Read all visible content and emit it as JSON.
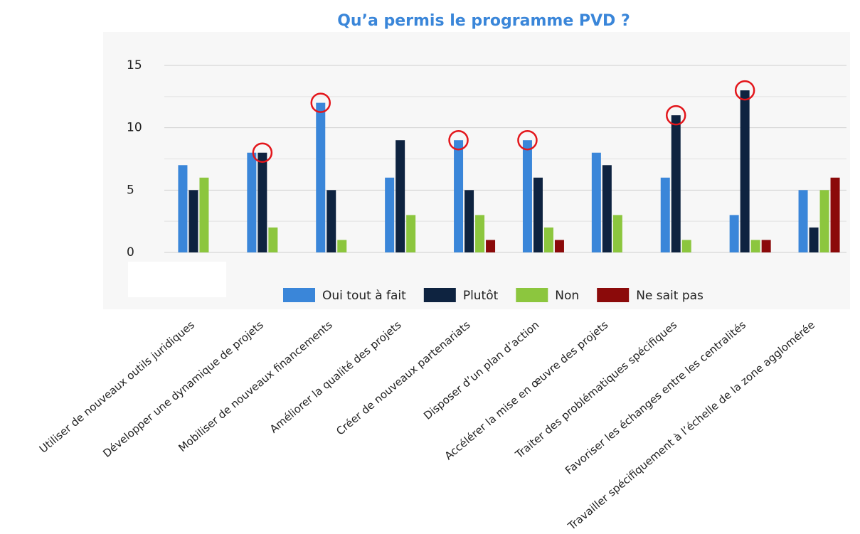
{
  "chart_data": {
    "type": "bar",
    "title": "Qu’a permis le programme PVD ?",
    "categories": [
      "Utiliser de nouveaux outils juridiques",
      "Développer une dynamique de projets",
      "Mobiliser de nouveaux financements",
      "Améliorer la qualité des projets",
      "Créer de nouveaux partenariats",
      "Disposer d’un plan d’action",
      "Accélérer la mise en œuvre des projets",
      "Traiter des problématiques spécifiques",
      "Favoriser les échanges entre les centralités",
      "Travailler spécifiquement à l’échelle de la zone agglomérée"
    ],
    "series": [
      {
        "name": "Oui tout à fait",
        "color": "#3a86d9",
        "values": [
          7,
          8,
          12,
          6,
          9,
          9,
          8,
          6,
          3,
          5
        ]
      },
      {
        "name": "Plutôt",
        "color": "#0e2340",
        "values": [
          5,
          8,
          5,
          9,
          5,
          6,
          7,
          11,
          13,
          2
        ]
      },
      {
        "name": "Non",
        "color": "#8cc63e",
        "values": [
          6,
          2,
          1,
          3,
          3,
          2,
          3,
          1,
          1,
          5
        ]
      },
      {
        "name": "Ne sait pas",
        "color": "#8b0a0a",
        "values": [
          0,
          0,
          0,
          0,
          1,
          1,
          0,
          0,
          1,
          6
        ]
      }
    ],
    "ylim": [
      0,
      15
    ],
    "yticks": [
      0,
      5,
      10,
      15
    ],
    "minor_yticks": [
      2.5,
      7.5,
      12.5
    ],
    "grid": true,
    "legend": "bottom",
    "highlighted": [
      [
        1,
        1
      ],
      [
        2,
        0
      ],
      [
        4,
        0
      ],
      [
        5,
        0
      ],
      [
        7,
        1
      ],
      [
        8,
        1
      ]
    ]
  }
}
